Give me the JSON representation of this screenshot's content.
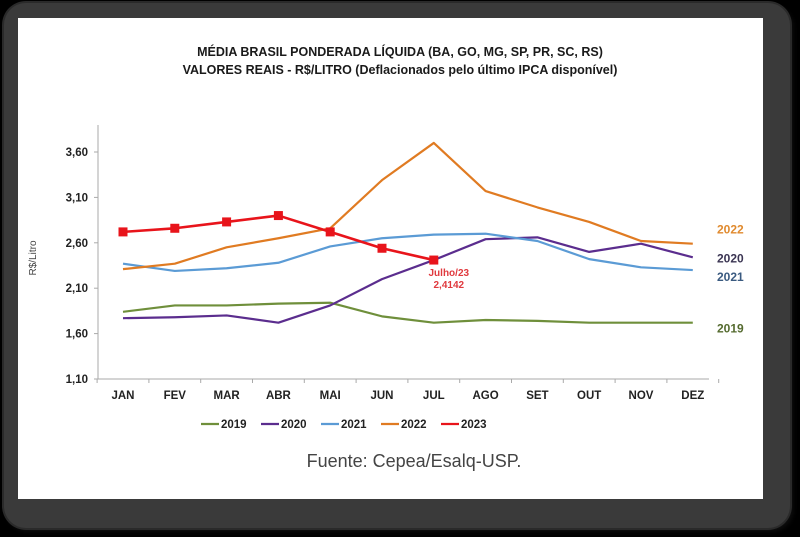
{
  "chart_data": {
    "type": "line",
    "title": "MÉDIA BRASIL PONDERADA LÍQUIDA (BA, GO, MG, SP, PR, SC, RS)",
    "subtitle": "VALORES REAIS - R$/LITRO (Deflacionados  pelo último IPCA disponível)",
    "xlabel": "",
    "ylabel": "R$/Litro",
    "categories": [
      "JAN",
      "FEV",
      "MAR",
      "ABR",
      "MAI",
      "JUN",
      "JUL",
      "AGO",
      "SET",
      "OUT",
      "NOV",
      "DEZ"
    ],
    "ylim": [
      1.1,
      3.85
    ],
    "yticks": [
      1.1,
      1.6,
      2.1,
      2.6,
      3.1,
      3.6
    ],
    "ytick_labels": [
      "1,10",
      "1,60",
      "2,10",
      "2,60",
      "3,10",
      "3,60"
    ],
    "grid": false,
    "legend_position": "bottom",
    "series": [
      {
        "name": "2019",
        "color": "#6f8f3b",
        "marker": "none",
        "end_label": "2019",
        "values": [
          1.84,
          1.91,
          1.91,
          1.93,
          1.94,
          1.79,
          1.72,
          1.75,
          1.74,
          1.72,
          1.72,
          1.72
        ]
      },
      {
        "name": "2020",
        "color": "#5b2d8e",
        "marker": "none",
        "end_label": "2020",
        "values": [
          1.77,
          1.78,
          1.8,
          1.72,
          1.91,
          2.2,
          2.41,
          2.64,
          2.66,
          2.5,
          2.59,
          2.44
        ]
      },
      {
        "name": "2021",
        "color": "#5b9bd5",
        "marker": "none",
        "end_label": "2021",
        "values": [
          2.37,
          2.29,
          2.32,
          2.38,
          2.56,
          2.65,
          2.69,
          2.7,
          2.62,
          2.42,
          2.33,
          2.3
        ]
      },
      {
        "name": "2022",
        "color": "#e07b22",
        "marker": "none",
        "end_label": "2022",
        "values": [
          2.31,
          2.37,
          2.55,
          2.65,
          2.76,
          3.29,
          3.7,
          3.17,
          2.99,
          2.83,
          2.62,
          2.59
        ]
      },
      {
        "name": "2023",
        "color": "#e8141b",
        "marker": "square",
        "end_label": "",
        "values": [
          2.72,
          2.76,
          2.83,
          2.9,
          2.72,
          2.54,
          2.41,
          null,
          null,
          null,
          null,
          null
        ]
      }
    ],
    "end_label_colors": {
      "2019": "#556b2f",
      "2020": "#3b3553",
      "2021": "#3a5a80",
      "2022": "#e08a2e"
    },
    "annotations": [
      {
        "series": "2023",
        "category": "JUL",
        "lines": [
          "Julho/23",
          "2,4142"
        ]
      }
    ]
  },
  "source": "Fuente: Cepea/Esalq-USP."
}
